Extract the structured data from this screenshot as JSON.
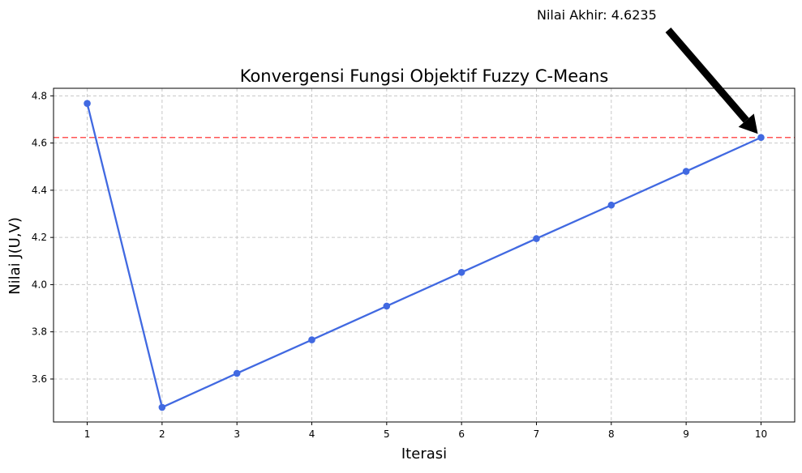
{
  "chart_data": {
    "type": "line",
    "title": "Konvergensi Fungsi Objektif Fuzzy C-Means",
    "xlabel": "Iterasi",
    "ylabel": "Nilai J(U,V)",
    "x": [
      1,
      2,
      3,
      4,
      5,
      6,
      7,
      8,
      9,
      10
    ],
    "xlim": [
      0.55,
      10.45
    ],
    "ylim": [
      3.418,
      4.832
    ],
    "yticks": [
      3.6,
      3.8,
      4.0,
      4.2,
      4.4,
      4.6,
      4.8
    ],
    "xticks": [
      1,
      2,
      3,
      4,
      5,
      6,
      7,
      8,
      9,
      10
    ],
    "grid": true,
    "series": [
      {
        "values": [
          4.768,
          3.48,
          3.624,
          3.766,
          3.909,
          4.052,
          4.195,
          4.337,
          4.48,
          4.6235
        ],
        "color": "#4169e1",
        "marker": "circle"
      }
    ],
    "reference_line": {
      "y": 4.6235,
      "color": "#ff5555",
      "style": "dashed"
    },
    "annotation": {
      "text": "Nilai Akhir: 4.6235",
      "x": 10,
      "y": 4.6235,
      "arrow_color": "#000000"
    }
  }
}
